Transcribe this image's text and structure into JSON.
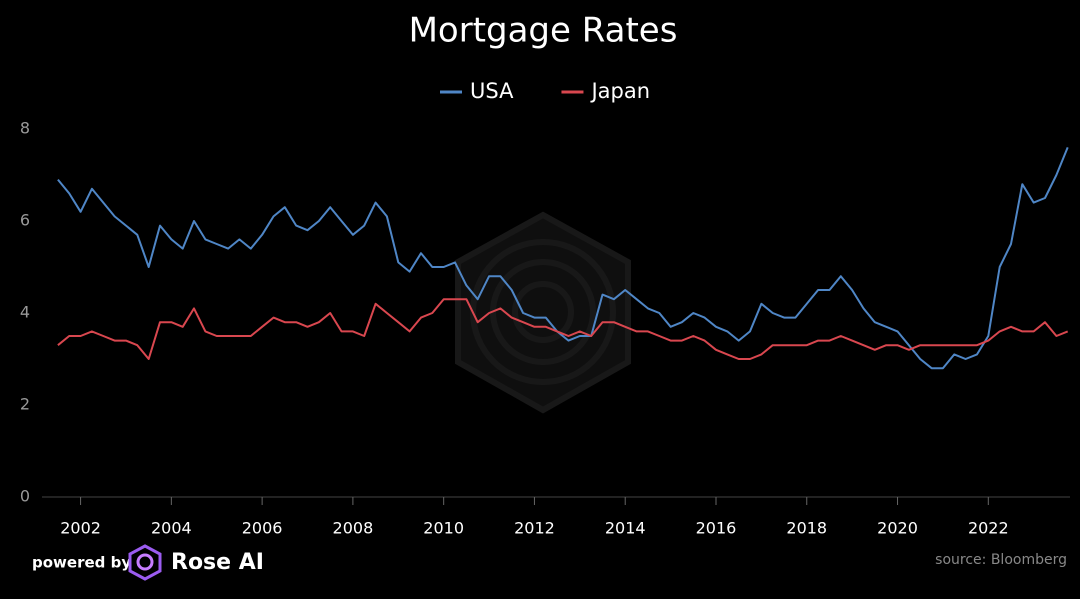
{
  "chart_data": {
    "type": "line",
    "title": "Mortgage Rates",
    "x": [
      2001.5,
      2001.75,
      2002,
      2002.25,
      2002.5,
      2002.75,
      2003,
      2003.25,
      2003.5,
      2003.75,
      2004,
      2004.25,
      2004.5,
      2004.75,
      2005,
      2005.25,
      2005.5,
      2005.75,
      2006,
      2006.25,
      2006.5,
      2006.75,
      2007,
      2007.25,
      2007.5,
      2007.75,
      2008,
      2008.25,
      2008.5,
      2008.75,
      2009,
      2009.25,
      2009.5,
      2009.75,
      2010,
      2010.25,
      2010.5,
      2010.75,
      2011,
      2011.25,
      2011.5,
      2011.75,
      2012,
      2012.25,
      2012.5,
      2012.75,
      2013,
      2013.25,
      2013.5,
      2013.75,
      2014,
      2014.25,
      2014.5,
      2014.75,
      2015,
      2015.25,
      2015.5,
      2015.75,
      2016,
      2016.25,
      2016.5,
      2016.75,
      2017,
      2017.25,
      2017.5,
      2017.75,
      2018,
      2018.25,
      2018.5,
      2018.75,
      2019,
      2019.25,
      2019.5,
      2019.75,
      2020,
      2020.25,
      2020.5,
      2020.75,
      2021,
      2021.25,
      2021.5,
      2021.75,
      2022,
      2022.25,
      2022.5,
      2022.75,
      2023,
      2023.25,
      2023.5,
      2023.75
    ],
    "series": [
      {
        "name": "USA",
        "color": "#4f86c6",
        "values": [
          6.9,
          6.6,
          6.2,
          6.7,
          6.4,
          6.1,
          5.9,
          5.7,
          5.0,
          5.9,
          5.6,
          5.4,
          6.0,
          5.6,
          5.5,
          5.4,
          5.6,
          5.4,
          5.7,
          6.1,
          6.3,
          5.9,
          5.8,
          6.0,
          6.3,
          6.0,
          5.7,
          5.9,
          6.4,
          6.1,
          5.1,
          4.9,
          5.3,
          5.0,
          5.0,
          5.1,
          4.6,
          4.3,
          4.8,
          4.8,
          4.5,
          4.0,
          3.9,
          3.9,
          3.6,
          3.4,
          3.5,
          3.5,
          4.4,
          4.3,
          4.5,
          4.3,
          4.1,
          4.0,
          3.7,
          3.8,
          4.0,
          3.9,
          3.7,
          3.6,
          3.4,
          3.6,
          4.2,
          4.0,
          3.9,
          3.9,
          4.2,
          4.5,
          4.5,
          4.8,
          4.5,
          4.1,
          3.8,
          3.7,
          3.6,
          3.3,
          3.0,
          2.8,
          2.8,
          3.1,
          3.0,
          3.1,
          3.5,
          5.0,
          5.5,
          6.8,
          6.4,
          6.5,
          7.0,
          7.6
        ]
      },
      {
        "name": "Japan",
        "color": "#d9474f",
        "values": [
          3.3,
          3.5,
          3.5,
          3.6,
          3.5,
          3.4,
          3.4,
          3.3,
          3.0,
          3.8,
          3.8,
          3.7,
          4.1,
          3.6,
          3.5,
          3.5,
          3.5,
          3.5,
          3.7,
          3.9,
          3.8,
          3.8,
          3.7,
          3.8,
          4.0,
          3.6,
          3.6,
          3.5,
          4.2,
          4.0,
          3.8,
          3.6,
          3.9,
          4.0,
          4.3,
          4.3,
          4.3,
          3.8,
          4.0,
          4.1,
          3.9,
          3.8,
          3.7,
          3.7,
          3.6,
          3.5,
          3.6,
          3.5,
          3.8,
          3.8,
          3.7,
          3.6,
          3.6,
          3.5,
          3.4,
          3.4,
          3.5,
          3.4,
          3.2,
          3.1,
          3.0,
          3.0,
          3.1,
          3.3,
          3.3,
          3.3,
          3.3,
          3.4,
          3.4,
          3.5,
          3.4,
          3.3,
          3.2,
          3.3,
          3.3,
          3.2,
          3.3,
          3.3,
          3.3,
          3.3,
          3.3,
          3.3,
          3.4,
          3.6,
          3.7,
          3.6,
          3.6,
          3.8,
          3.5,
          3.6
        ]
      }
    ],
    "xlim": [
      2001.15,
      2023.8
    ],
    "xticks": [
      2002,
      2004,
      2006,
      2008,
      2010,
      2012,
      2014,
      2016,
      2018,
      2020,
      2022
    ],
    "ylim": [
      0,
      8
    ],
    "yticks": [
      0,
      2,
      4,
      6,
      8
    ],
    "grid": false,
    "legend": "top"
  },
  "footer": {
    "powered_by": "powered by",
    "brand": "Rose AI",
    "source": "source: Bloomberg"
  }
}
